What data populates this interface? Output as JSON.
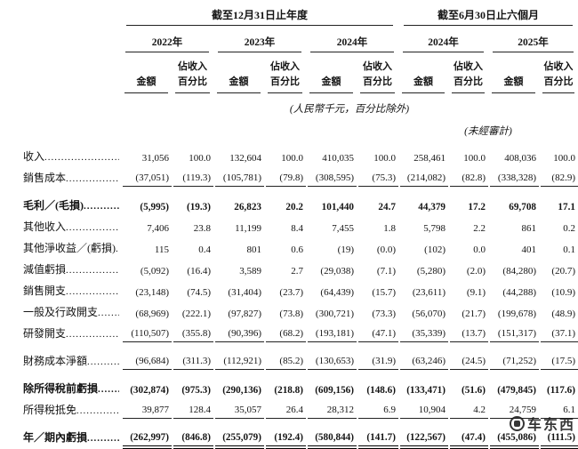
{
  "table": {
    "groups": [
      {
        "title": "截至12月31日止年度"
      },
      {
        "title": "截至6月30日止六個月"
      }
    ],
    "years": [
      "2022年",
      "2023年",
      "2024年",
      "2024年",
      "2025年"
    ],
    "sub_headers": {
      "amount": "金額",
      "pct_line1": "佔收入",
      "pct_line2": "百分比"
    },
    "notes": {
      "currency": "(人民幣千元，百分比除外)",
      "unaudited": "(未經審計)"
    },
    "rows": [
      {
        "label": "收入",
        "bold": false,
        "underline": "none",
        "gap_top": false,
        "values": [
          "31,056",
          "100.0",
          "132,604",
          "100.0",
          "410,035",
          "100.0",
          "258,461",
          "100.0",
          "408,036",
          "100.0"
        ]
      },
      {
        "label": "銷售成本",
        "bold": false,
        "underline": "single",
        "gap_top": false,
        "values": [
          "(37,051)",
          "(119.3)",
          "(105,781)",
          "(79.8)",
          "(308,595)",
          "(75.3)",
          "(214,082)",
          "(82.8)",
          "(338,328)",
          "(82.9)"
        ]
      },
      {
        "label": "毛利／(毛損)",
        "bold": true,
        "underline": "none",
        "gap_top": true,
        "values": [
          "(5,995)",
          "(19.3)",
          "26,823",
          "20.2",
          "101,440",
          "24.7",
          "44,379",
          "17.2",
          "69,708",
          "17.1"
        ]
      },
      {
        "label": "其他收入",
        "bold": false,
        "underline": "none",
        "gap_top": false,
        "values": [
          "7,406",
          "23.8",
          "11,199",
          "8.4",
          "7,455",
          "1.8",
          "5,798",
          "2.2",
          "861",
          "0.2"
        ]
      },
      {
        "label": "其他淨收益／(虧損)",
        "bold": false,
        "underline": "none",
        "gap_top": false,
        "values": [
          "115",
          "0.4",
          "801",
          "0.6",
          "(19)",
          "(0.0)",
          "(102)",
          "0.0",
          "401",
          "0.1"
        ]
      },
      {
        "label": "減值虧損",
        "bold": false,
        "underline": "none",
        "gap_top": false,
        "values": [
          "(5,092)",
          "(16.4)",
          "3,589",
          "2.7",
          "(29,038)",
          "(7.1)",
          "(5,280)",
          "(2.0)",
          "(84,280)",
          "(20.7)"
        ]
      },
      {
        "label": "銷售開支",
        "bold": false,
        "underline": "none",
        "gap_top": false,
        "values": [
          "(23,148)",
          "(74.5)",
          "(31,404)",
          "(23.7)",
          "(64,439)",
          "(15.7)",
          "(23,611)",
          "(9.1)",
          "(44,288)",
          "(10.9)"
        ]
      },
      {
        "label": "一般及行政開支",
        "bold": false,
        "underline": "none",
        "gap_top": false,
        "values": [
          "(68,969)",
          "(222.1)",
          "(97,827)",
          "(73.8)",
          "(300,721)",
          "(73.3)",
          "(56,070)",
          "(21.7)",
          "(199,678)",
          "(48.9)"
        ]
      },
      {
        "label": "研發開支",
        "bold": false,
        "underline": "single",
        "gap_top": false,
        "values": [
          "(110,507)",
          "(355.8)",
          "(90,396)",
          "(68.2)",
          "(193,181)",
          "(47.1)",
          "(35,339)",
          "(13.7)",
          "(151,317)",
          "(37.1)"
        ]
      },
      {
        "label": "財務成本淨額",
        "bold": false,
        "underline": "single",
        "gap_top": true,
        "values": [
          "(96,684)",
          "(311.3)",
          "(112,921)",
          "(85.2)",
          "(130,653)",
          "(31.9)",
          "(63,246)",
          "(24.5)",
          "(71,252)",
          "(17.5)"
        ]
      },
      {
        "label": "除所得稅前虧損",
        "bold": true,
        "underline": "none",
        "gap_top": true,
        "values": [
          "(302,874)",
          "(975.3)",
          "(290,136)",
          "(218.8)",
          "(609,156)",
          "(148.6)",
          "(133,471)",
          "(51.6)",
          "(479,845)",
          "(117.6)"
        ]
      },
      {
        "label": "所得稅抵免",
        "bold": false,
        "underline": "single",
        "gap_top": false,
        "values": [
          "39,877",
          "128.4",
          "35,057",
          "26.4",
          "28,312",
          "6.9",
          "10,904",
          "4.2",
          "24,759",
          "6.1"
        ]
      },
      {
        "label": "年／期內虧損",
        "bold": true,
        "underline": "double",
        "gap_top": true,
        "values": [
          "(262,997)",
          "(846.8)",
          "(255,079)",
          "(192.4)",
          "(580,844)",
          "(141.7)",
          "(122,567)",
          "(47.4)",
          "(455,086)",
          "(111.5)"
        ]
      }
    ]
  },
  "watermark": {
    "text": "车东西"
  }
}
